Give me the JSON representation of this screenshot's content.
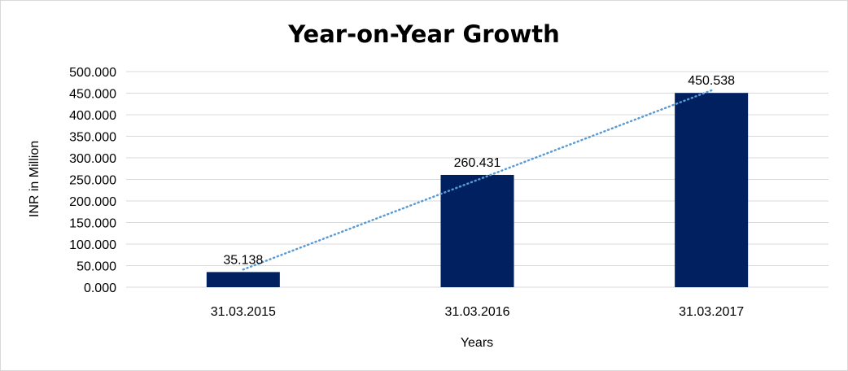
{
  "chart_data": {
    "type": "bar",
    "title": "Year-on-Year Growth",
    "xlabel": "Years",
    "ylabel": "INR in Million",
    "categories": [
      "31.03.2015",
      "31.03.2016",
      "31.03.2017"
    ],
    "values": [
      35.138,
      260.431,
      450.538
    ],
    "data_labels": [
      "35.138",
      "260.431",
      "450.538"
    ],
    "ylim": [
      0,
      500
    ],
    "yticks": [
      0,
      50,
      100,
      150,
      200,
      250,
      300,
      350,
      400,
      450,
      500
    ],
    "ytick_labels": [
      "0.000",
      "50.000",
      "100.000",
      "150.000",
      "200.000",
      "250.000",
      "300.000",
      "350.000",
      "400.000",
      "450.000",
      "500.000"
    ],
    "grid": true,
    "trendline": {
      "type": "linear",
      "style": "dotted"
    },
    "colors": {
      "bar": "#002060",
      "trendline": "#5b9bd5",
      "grid": "#d9d9d9"
    }
  }
}
